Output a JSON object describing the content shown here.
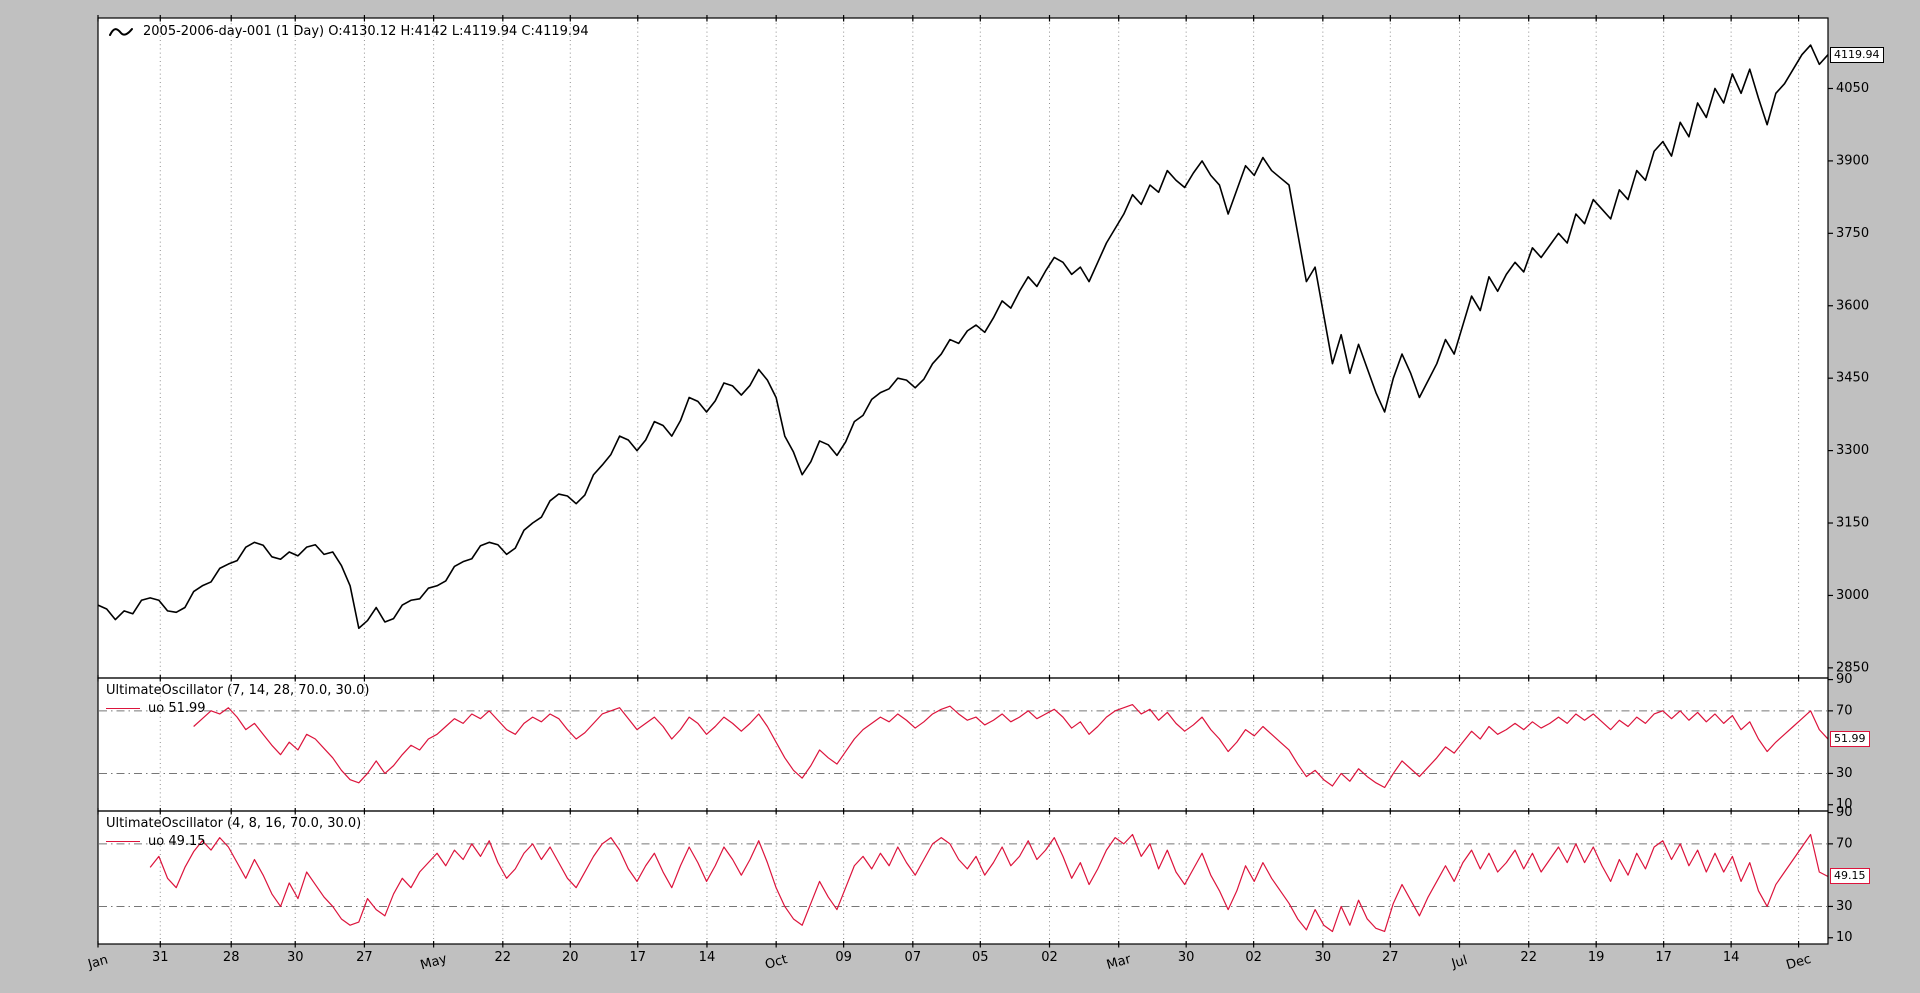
{
  "figure": {
    "background": "#c0c0c0",
    "plot_background": "#ffffff"
  },
  "colors": {
    "price_line": "#000000",
    "oscillator_line": "#dc143c",
    "grid": "#8f8f8f",
    "hline": "#777777",
    "border": "#000000",
    "tick_text": "#000000"
  },
  "x_axis": {
    "ticks": [
      {
        "label": "Jan",
        "f": 0.0,
        "month": true
      },
      {
        "label": "31",
        "f": 0.036,
        "month": false
      },
      {
        "label": "28",
        "f": 0.077,
        "month": false
      },
      {
        "label": "30",
        "f": 0.114,
        "month": false
      },
      {
        "label": "27",
        "f": 0.154,
        "month": false
      },
      {
        "label": "May",
        "f": 0.194,
        "month": true
      },
      {
        "label": "22",
        "f": 0.234,
        "month": false
      },
      {
        "label": "20",
        "f": 0.273,
        "month": false
      },
      {
        "label": "17",
        "f": 0.312,
        "month": false
      },
      {
        "label": "14",
        "f": 0.352,
        "month": false
      },
      {
        "label": "Oct",
        "f": 0.392,
        "month": true
      },
      {
        "label": "09",
        "f": 0.431,
        "month": false
      },
      {
        "label": "07",
        "f": 0.471,
        "month": false
      },
      {
        "label": "05",
        "f": 0.51,
        "month": false
      },
      {
        "label": "02",
        "f": 0.55,
        "month": false
      },
      {
        "label": "Mar",
        "f": 0.59,
        "month": true
      },
      {
        "label": "30",
        "f": 0.629,
        "month": false
      },
      {
        "label": "02",
        "f": 0.668,
        "month": false
      },
      {
        "label": "30",
        "f": 0.708,
        "month": false
      },
      {
        "label": "27",
        "f": 0.747,
        "month": false
      },
      {
        "label": "Jul",
        "f": 0.787,
        "month": true
      },
      {
        "label": "22",
        "f": 0.827,
        "month": false
      },
      {
        "label": "19",
        "f": 0.866,
        "month": false
      },
      {
        "label": "17",
        "f": 0.905,
        "month": false
      },
      {
        "label": "14",
        "f": 0.944,
        "month": false
      },
      {
        "label": "Dec",
        "f": 0.983,
        "month": true
      }
    ]
  },
  "chart_data": [
    {
      "type": "line",
      "panel": "price",
      "title": "2005-2006-day-001 (1 Day) O:4130.12 H:4142 L:4119.94 C:4119.94",
      "last_value_label": "4119.94",
      "last_value": 4119.94,
      "xlabel": "",
      "ylabel": "",
      "ylim": [
        2829,
        4196
      ],
      "yticks": [
        4050,
        3900,
        3750,
        3600,
        3450,
        3300,
        3150,
        3000,
        2850
      ],
      "grid": "vertical-dotted",
      "legend_position": "upper-left",
      "series": [
        {
          "name": "2005-2006-day-001",
          "color": "#000000",
          "values": [
            2980,
            2972,
            2950,
            2968,
            2962,
            2990,
            2995,
            2990,
            2968,
            2965,
            2975,
            3008,
            3020,
            3028,
            3056,
            3065,
            3072,
            3100,
            3110,
            3104,
            3080,
            3075,
            3090,
            3082,
            3100,
            3105,
            3085,
            3090,
            3062,
            3020,
            2932,
            2948,
            2975,
            2945,
            2952,
            2980,
            2990,
            2993,
            3015,
            3020,
            3030,
            3060,
            3070,
            3076,
            3103,
            3110,
            3105,
            3085,
            3098,
            3135,
            3150,
            3162,
            3196,
            3210,
            3206,
            3190,
            3208,
            3250,
            3270,
            3292,
            3330,
            3322,
            3300,
            3322,
            3360,
            3352,
            3330,
            3362,
            3410,
            3402,
            3380,
            3403,
            3440,
            3434,
            3415,
            3435,
            3468,
            3446,
            3410,
            3330,
            3297,
            3250,
            3277,
            3320,
            3312,
            3290,
            3318,
            3360,
            3373,
            3406,
            3420,
            3428,
            3450,
            3446,
            3430,
            3448,
            3480,
            3500,
            3530,
            3522,
            3548,
            3560,
            3545,
            3575,
            3610,
            3595,
            3630,
            3660,
            3640,
            3672,
            3700,
            3690,
            3665,
            3680,
            3650,
            3690,
            3730,
            3760,
            3790,
            3830,
            3810,
            3850,
            3835,
            3880,
            3860,
            3845,
            3875,
            3900,
            3870,
            3850,
            3790,
            3840,
            3890,
            3870,
            3907,
            3880,
            3865,
            3850,
            3750,
            3650,
            3680,
            3580,
            3480,
            3540,
            3460,
            3520,
            3470,
            3420,
            3380,
            3450,
            3500,
            3460,
            3410,
            3445,
            3480,
            3530,
            3500,
            3560,
            3620,
            3590,
            3660,
            3630,
            3665,
            3690,
            3670,
            3720,
            3700,
            3725,
            3750,
            3730,
            3790,
            3770,
            3820,
            3800,
            3780,
            3840,
            3820,
            3880,
            3860,
            3920,
            3940,
            3910,
            3980,
            3950,
            4020,
            3990,
            4050,
            4020,
            4080,
            4040,
            4090,
            4030,
            3975,
            4040,
            4060,
            4090,
            4120,
            4140,
            4100,
            4119.94
          ]
        }
      ]
    },
    {
      "type": "line",
      "panel": "oscillator1",
      "title": "UltimateOscillator (7, 14, 28, 70.0, 30.0)",
      "legend_label": "uo 51.99",
      "last_value_label": "51.99",
      "last_value": 51.99,
      "ylim": [
        6,
        91
      ],
      "yticks": [
        90,
        70,
        30,
        10
      ],
      "hlines": [
        70,
        30
      ],
      "grid": "vertical-dotted",
      "series": [
        {
          "name": "uo",
          "color": "#dc143c",
          "values": [
            null,
            null,
            null,
            null,
            null,
            null,
            null,
            null,
            null,
            null,
            null,
            60,
            65,
            70,
            68,
            72,
            66,
            58,
            62,
            55,
            48,
            42,
            50,
            45,
            55,
            52,
            46,
            40,
            32,
            26,
            24,
            30,
            38,
            30,
            35,
            42,
            48,
            45,
            52,
            55,
            60,
            65,
            62,
            68,
            65,
            70,
            64,
            58,
            55,
            62,
            66,
            63,
            68,
            65,
            58,
            52,
            56,
            62,
            68,
            70,
            72,
            65,
            58,
            62,
            66,
            60,
            52,
            58,
            66,
            62,
            55,
            60,
            66,
            62,
            57,
            62,
            68,
            60,
            50,
            40,
            32,
            27,
            35,
            45,
            40,
            36,
            44,
            52,
            58,
            62,
            66,
            63,
            68,
            64,
            59,
            63,
            68,
            71,
            73,
            68,
            64,
            66,
            61,
            64,
            68,
            63,
            66,
            70,
            65,
            68,
            71,
            66,
            59,
            63,
            55,
            60,
            66,
            70,
            72,
            74,
            68,
            71,
            64,
            69,
            62,
            57,
            61,
            66,
            58,
            52,
            44,
            50,
            58,
            54,
            60,
            55,
            50,
            45,
            36,
            28,
            32,
            26,
            22,
            30,
            25,
            33,
            28,
            24,
            21,
            30,
            38,
            33,
            28,
            34,
            40,
            47,
            43,
            50,
            57,
            52,
            60,
            55,
            58,
            62,
            58,
            63,
            59,
            62,
            66,
            62,
            68,
            64,
            68,
            63,
            58,
            64,
            60,
            66,
            62,
            68,
            70,
            65,
            70,
            64,
            69,
            63,
            68,
            62,
            67,
            58,
            63,
            52,
            44,
            50,
            55,
            60,
            65,
            70,
            58,
            51.99
          ]
        }
      ]
    },
    {
      "type": "line",
      "panel": "oscillator2",
      "title": "UltimateOscillator (4, 8, 16, 70.0, 30.0)",
      "legend_label": "uo 49.15",
      "last_value_label": "49.15",
      "last_value": 49.15,
      "ylim": [
        6,
        91
      ],
      "yticks": [
        90,
        70,
        30,
        10
      ],
      "hlines": [
        70,
        30
      ],
      "grid": "vertical-dotted",
      "series": [
        {
          "name": "uo",
          "color": "#dc143c",
          "values": [
            null,
            null,
            null,
            null,
            null,
            null,
            55,
            62,
            48,
            42,
            55,
            65,
            72,
            66,
            74,
            68,
            58,
            48,
            60,
            50,
            38,
            30,
            45,
            35,
            52,
            44,
            36,
            30,
            22,
            18,
            20,
            35,
            28,
            24,
            38,
            48,
            42,
            52,
            58,
            64,
            56,
            66,
            60,
            70,
            62,
            72,
            58,
            48,
            54,
            64,
            70,
            60,
            68,
            58,
            48,
            42,
            52,
            62,
            70,
            74,
            66,
            54,
            46,
            56,
            64,
            52,
            42,
            56,
            68,
            58,
            46,
            56,
            68,
            60,
            50,
            60,
            72,
            58,
            42,
            30,
            22,
            18,
            32,
            46,
            36,
            28,
            42,
            56,
            62,
            54,
            64,
            56,
            68,
            58,
            50,
            60,
            70,
            74,
            70,
            60,
            54,
            62,
            50,
            58,
            68,
            56,
            62,
            72,
            60,
            66,
            74,
            62,
            48,
            58,
            44,
            54,
            66,
            74,
            70,
            76,
            62,
            70,
            54,
            66,
            52,
            44,
            54,
            64,
            50,
            40,
            28,
            40,
            56,
            46,
            58,
            48,
            40,
            32,
            22,
            15,
            28,
            18,
            14,
            30,
            18,
            34,
            22,
            16,
            14,
            32,
            44,
            34,
            24,
            36,
            46,
            56,
            46,
            58,
            66,
            54,
            64,
            52,
            58,
            66,
            54,
            64,
            52,
            60,
            68,
            58,
            70,
            58,
            68,
            56,
            46,
            60,
            50,
            64,
            54,
            68,
            72,
            60,
            70,
            56,
            66,
            52,
            64,
            52,
            62,
            46,
            58,
            40,
            30,
            44,
            52,
            60,
            68,
            76,
            52,
            49.15
          ]
        }
      ]
    }
  ]
}
